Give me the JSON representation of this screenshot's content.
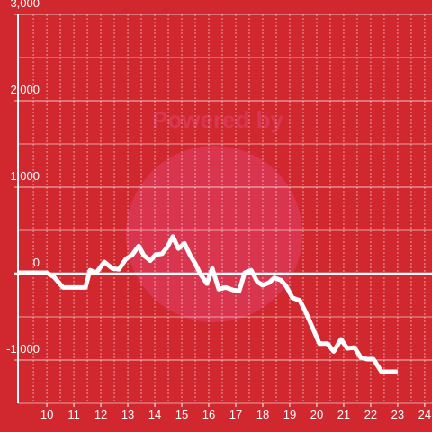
{
  "chart_data": {
    "type": "line",
    "watermark": "Powered by",
    "x": [
      8.93,
      10,
      10.27,
      10.6,
      11.43,
      11.6,
      11.83,
      12.13,
      12.43,
      12.67,
      12.93,
      13.17,
      13.4,
      13.6,
      13.83,
      14.03,
      14.27,
      14.47,
      14.67,
      14.87,
      15.1,
      15.3,
      15.5,
      15.7,
      15.93,
      16.13,
      16.37,
      16.63,
      16.9,
      17.13,
      17.33,
      17.57,
      17.8,
      18.0,
      18.23,
      18.43,
      18.67,
      18.87,
      19.1,
      19.37,
      19.6,
      19.83,
      20.1,
      20.4,
      20.63,
      20.9,
      21.13,
      21.4,
      21.63,
      21.87,
      22.1,
      22.4,
      23
    ],
    "series": [
      {
        "color": "#ffffff",
        "values": [
          10,
          10,
          -40,
          -160,
          -160,
          40,
          10,
          135,
          60,
          50,
          170,
          220,
          320,
          210,
          150,
          220,
          230,
          310,
          430,
          290,
          350,
          220,
          115,
          -10,
          -115,
          60,
          -180,
          -160,
          -190,
          -200,
          10,
          40,
          -95,
          -135,
          -105,
          -50,
          -75,
          -145,
          -280,
          -310,
          -450,
          -615,
          -810,
          -810,
          -900,
          -760,
          -865,
          -855,
          -970,
          -990,
          -990,
          -1135,
          -1135
        ]
      }
    ],
    "xlim": [
      8.93,
      24.27
    ],
    "ylim": [
      -1500,
      3000
    ],
    "xticks": [
      10,
      11,
      12,
      13,
      14,
      15,
      16,
      17,
      18,
      19,
      20,
      21,
      22,
      23,
      24
    ],
    "yticks": [
      {
        "value": 3000,
        "label": "3,000"
      },
      {
        "value": 2000,
        "label": "2,000"
      },
      {
        "value": 1000,
        "label": "1,000"
      },
      0,
      {
        "value": -1000,
        "label": "-1,000"
      }
    ],
    "x_minor_grid": [
      9.5,
      10,
      10.5,
      11,
      11.5,
      12,
      12.5,
      13,
      13.5,
      14,
      14.5,
      15,
      15.5,
      16,
      16.5,
      17,
      17.5,
      18,
      18.5,
      19,
      19.5,
      20,
      20.5,
      21,
      21.5,
      22,
      22.5,
      23,
      23.5,
      24
    ],
    "y_minor_grid": [
      2500,
      1500,
      500,
      -500,
      -1500
    ],
    "grid": true
  }
}
